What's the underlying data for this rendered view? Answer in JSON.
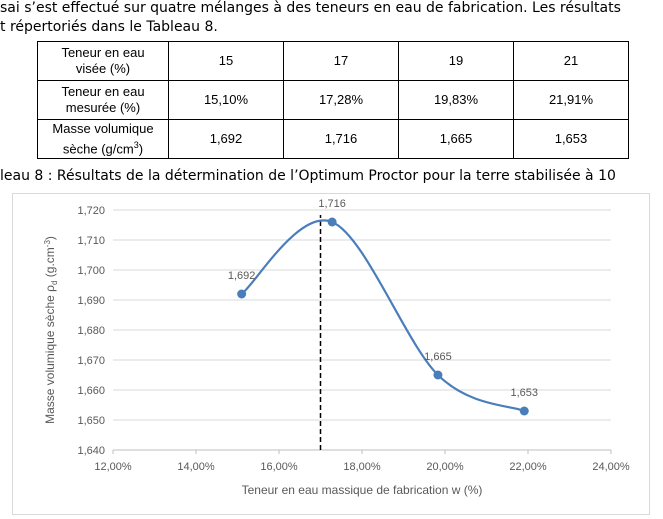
{
  "document": {
    "lines": [
      "sai s’est effectué sur quatre mélanges à des teneurs en eau de fabrication. Les résultats",
      "t répertoriés dans le Tableau 8."
    ]
  },
  "table": {
    "rows": [
      {
        "label": "Teneur en eau visée (%)",
        "cells": [
          "15",
          "17",
          "19",
          "21"
        ]
      },
      {
        "label": "Teneur en eau mesurée (%)",
        "cells": [
          "15,10%",
          "17,28%",
          "19,83%",
          "21,91%"
        ]
      },
      {
        "label": "Masse volumique sèche (g/cm",
        "label_sup": "3",
        "label_end": ")",
        "cells": [
          "1,692",
          "1,716",
          "1,665",
          "1,653"
        ]
      }
    ]
  },
  "caption": "leau 8 : Résultats de la détermination de l’Optimum Proctor pour la terre stabilisée à 10",
  "chart_data": {
    "type": "line",
    "smooth": true,
    "color": "#4a7ebb",
    "x": [
      15.1,
      17.28,
      19.83,
      21.91
    ],
    "values": [
      1.692,
      1.716,
      1.665,
      1.653
    ],
    "value_labels": [
      "1,692",
      "1,716",
      "1,665",
      "1,653"
    ],
    "xlabel": "Teneur en eau massique de fabrication w (%)",
    "ylabel": {
      "text": "Masse volumique sèche ρ",
      "sub": "d",
      "mid": " (g.cm",
      "sup": "-3",
      "end": ")"
    },
    "xlim": [
      12,
      24
    ],
    "xticks": [
      {
        "value": 12,
        "label": "12,00%"
      },
      {
        "value": 14,
        "label": "14,00%"
      },
      {
        "value": 16,
        "label": "16,00%"
      },
      {
        "value": 18,
        "label": "18,00%"
      },
      {
        "value": 20,
        "label": "20,00%"
      },
      {
        "value": 22,
        "label": "22,00%"
      },
      {
        "value": 24,
        "label": "24,00%"
      }
    ],
    "ylim": [
      1.64,
      1.72
    ],
    "yticks": [
      {
        "value": 1.64,
        "label": "1,640"
      },
      {
        "value": 1.65,
        "label": "1,650"
      },
      {
        "value": 1.66,
        "label": "1,660"
      },
      {
        "value": 1.67,
        "label": "1,670"
      },
      {
        "value": 1.68,
        "label": "1,680"
      },
      {
        "value": 1.69,
        "label": "1,690"
      },
      {
        "value": 1.7,
        "label": "1,700"
      },
      {
        "value": 1.71,
        "label": "1,710"
      },
      {
        "value": 1.72,
        "label": "1,720"
      }
    ],
    "grid": true,
    "reference_line": {
      "x": 17,
      "style": "dashed"
    }
  }
}
